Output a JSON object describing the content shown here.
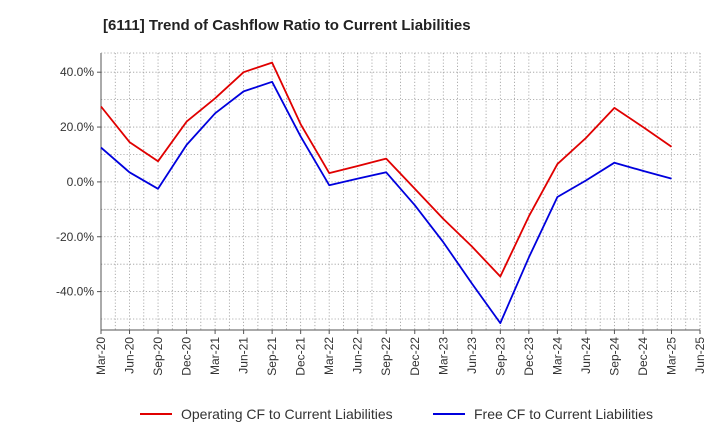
{
  "chart_data": {
    "type": "line",
    "title": "[6111]  Trend of Cashflow Ratio to Current Liabilities",
    "xlabel": "",
    "ylabel": "",
    "x_ticks": [
      "Mar-20",
      "Jun-20",
      "Sep-20",
      "Dec-20",
      "Mar-21",
      "Jun-21",
      "Sep-21",
      "Dec-21",
      "Mar-22",
      "Jun-22",
      "Sep-22",
      "Dec-22",
      "Mar-23",
      "Jun-23",
      "Sep-23",
      "Dec-23",
      "Mar-24",
      "Jun-24",
      "Sep-24",
      "Dec-24",
      "Mar-25",
      "Jun-25"
    ],
    "y_ticks": [
      {
        "value": 40,
        "label": "40.0%"
      },
      {
        "value": 20,
        "label": "20.0%"
      },
      {
        "value": 0,
        "label": "0.0%"
      },
      {
        "value": -20,
        "label": "-20.0%"
      },
      {
        "value": -40,
        "label": "-40.0%"
      }
    ],
    "ylim": [
      -54,
      47
    ],
    "grid": true,
    "legend_position": "bottom",
    "series": [
      {
        "name": "Operating CF to Current Liabilities",
        "color": "#e00000",
        "points": [
          [
            "Mar-20",
            27.5
          ],
          [
            "Jun-20",
            14.5
          ],
          [
            "Sep-20",
            7.5
          ],
          [
            "Dec-20",
            22.0
          ],
          [
            "Mar-21",
            30.5
          ],
          [
            "Jun-21",
            40.0
          ],
          [
            "Sep-21",
            43.5
          ],
          [
            "Dec-21",
            21.0
          ],
          [
            "Mar-22",
            3.2
          ],
          [
            "Jun-22",
            5.8
          ],
          [
            "Sep-22",
            8.5
          ],
          [
            "Dec-22",
            -2.5
          ],
          [
            "Mar-23",
            -13.5
          ],
          [
            "Jun-23",
            -23.5
          ],
          [
            "Sep-23",
            -34.5
          ],
          [
            "Dec-23",
            -12.5
          ],
          [
            "Mar-24",
            6.5
          ],
          [
            "Jun-24",
            16.0
          ],
          [
            "Sep-24",
            27.0
          ],
          [
            "Dec-24",
            20.0
          ],
          [
            "Mar-25",
            12.8
          ]
        ]
      },
      {
        "name": "Free CF to Current Liabilities",
        "color": "#0000dd",
        "points": [
          [
            "Mar-20",
            12.5
          ],
          [
            "Jun-20",
            3.5
          ],
          [
            "Sep-20",
            -2.5
          ],
          [
            "Dec-20",
            13.5
          ],
          [
            "Mar-21",
            25.0
          ],
          [
            "Jun-21",
            33.0
          ],
          [
            "Sep-21",
            36.5
          ],
          [
            "Dec-21",
            16.5
          ],
          [
            "Mar-22",
            -1.2
          ],
          [
            "Jun-22",
            1.2
          ],
          [
            "Sep-22",
            3.5
          ],
          [
            "Dec-22",
            -8.5
          ],
          [
            "Mar-23",
            -22.0
          ],
          [
            "Jun-23",
            -37.0
          ],
          [
            "Sep-23",
            -51.5
          ],
          [
            "Dec-23",
            -27.5
          ],
          [
            "Mar-24",
            -5.5
          ],
          [
            "Jun-24",
            0.5
          ],
          [
            "Sep-24",
            7.0
          ],
          [
            "Dec-24",
            4.0
          ],
          [
            "Mar-25",
            1.2
          ]
        ]
      }
    ]
  }
}
